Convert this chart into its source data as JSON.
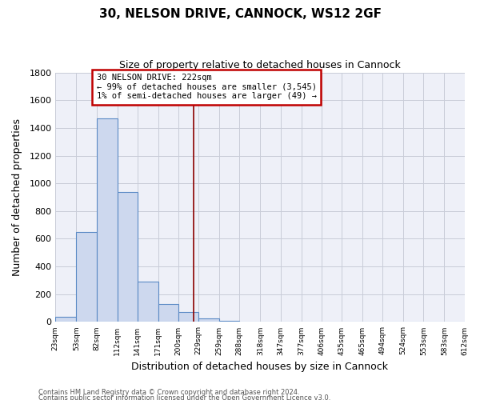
{
  "title": "30, NELSON DRIVE, CANNOCK, WS12 2GF",
  "subtitle": "Size of property relative to detached houses in Cannock",
  "xlabel": "Distribution of detached houses by size in Cannock",
  "ylabel": "Number of detached properties",
  "bar_color": "#cdd8ee",
  "bar_edge_color": "#5b8ac5",
  "plot_bg_color": "#eef0f8",
  "fig_bg_color": "#ffffff",
  "bins": [
    23,
    53,
    82,
    112,
    141,
    171,
    200,
    229,
    259,
    288,
    318,
    347,
    377,
    406,
    435,
    465,
    494,
    524,
    553,
    583,
    612
  ],
  "counts": [
    40,
    650,
    1470,
    935,
    290,
    130,
    70,
    25,
    10,
    0,
    0,
    5,
    0,
    0,
    0,
    0,
    0,
    0,
    0,
    0
  ],
  "tick_labels": [
    "23sqm",
    "53sqm",
    "82sqm",
    "112sqm",
    "141sqm",
    "171sqm",
    "200sqm",
    "229sqm",
    "259sqm",
    "288sqm",
    "318sqm",
    "347sqm",
    "377sqm",
    "406sqm",
    "435sqm",
    "465sqm",
    "494sqm",
    "524sqm",
    "553sqm",
    "583sqm",
    "612sqm"
  ],
  "property_line_x": 222,
  "property_line_color": "#8b0000",
  "annotation_text": "30 NELSON DRIVE: 222sqm\n← 99% of detached houses are smaller (3,545)\n1% of semi-detached houses are larger (49) →",
  "annotation_box_color": "#ffffff",
  "annotation_box_edge": "#c00000",
  "ylim": [
    0,
    1800
  ],
  "yticks": [
    0,
    200,
    400,
    600,
    800,
    1000,
    1200,
    1400,
    1600,
    1800
  ],
  "footnote1": "Contains HM Land Registry data © Crown copyright and database right 2024.",
  "footnote2": "Contains public sector information licensed under the Open Government Licence v3.0.",
  "grid_color": "#c8ccd8"
}
